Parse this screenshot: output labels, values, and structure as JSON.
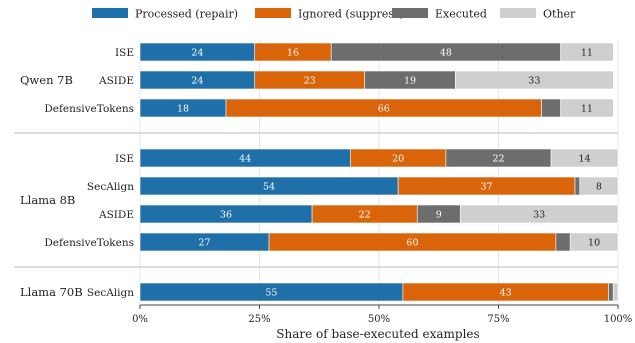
{
  "chart_data": {
    "type": "bar",
    "orientation": "horizontal",
    "stacked": true,
    "xlabel": "Share of base-executed examples",
    "xlim": [
      0,
      100
    ],
    "xticks": [
      "0%",
      "25%",
      "50%",
      "75%",
      "100%"
    ],
    "legend_position": "top",
    "series": [
      {
        "name": "Processed (repair)",
        "color": "#1f6fa8",
        "label_color": "#ffffff"
      },
      {
        "name": "Ignored (suppress)",
        "color": "#d9640a",
        "label_color": "#ffffff"
      },
      {
        "name": "Executed",
        "color": "#6d6d6d",
        "label_color": "#ffffff"
      },
      {
        "name": "Other",
        "color": "#cfcfcf",
        "label_color": "#222222"
      }
    ],
    "groups": [
      {
        "name": "Qwen 7B",
        "rows": [
          {
            "method": "ISE",
            "values": [
              24,
              16,
              48,
              11
            ]
          },
          {
            "method": "ASIDE",
            "values": [
              24,
              23,
              19,
              33
            ]
          },
          {
            "method": "DefensiveTokens",
            "values": [
              18,
              66,
              4,
              11
            ]
          }
        ]
      },
      {
        "name": "Llama 8B",
        "rows": [
          {
            "method": "ISE",
            "values": [
              44,
              20,
              22,
              14
            ]
          },
          {
            "method": "SecAlign",
            "values": [
              54,
              37,
              1,
              8
            ]
          },
          {
            "method": "ASIDE",
            "values": [
              36,
              22,
              9,
              33
            ]
          },
          {
            "method": "DefensiveTokens",
            "values": [
              27,
              60,
              3,
              10
            ]
          }
        ]
      },
      {
        "name": "Llama 70B",
        "rows": [
          {
            "method": "SecAlign",
            "values": [
              55,
              43,
              1,
              1
            ]
          }
        ]
      }
    ]
  }
}
